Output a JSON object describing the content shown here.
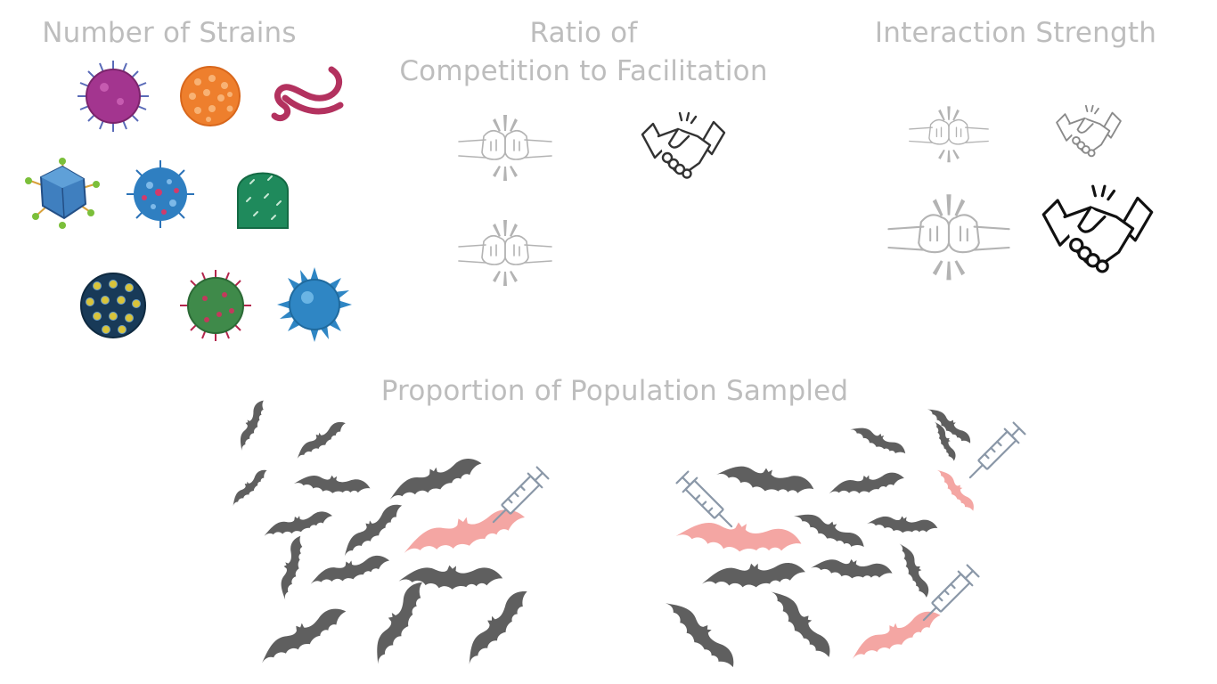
{
  "titles": {
    "strains": "Number of Strains",
    "ratio_line1": "Ratio of",
    "ratio_line2": "Competition to Facilitation",
    "interaction": "Interaction Strength",
    "population": "Proportion of Population Sampled"
  },
  "icons": {
    "viruses": [
      "magenta-spiky-virus",
      "orange-dotted-virus",
      "pink-filament-virus",
      "blue-polyhedral-virus",
      "blue-pink-spiked-virus",
      "green-bullet-virus",
      "dark-honeycomb-virus",
      "green-red-spiked-virus",
      "blue-spiky-virus"
    ],
    "competition": "fist-bump-icon",
    "facilitation": "handshake-icon",
    "bats": "bat-silhouette-icon",
    "sampling": "syringe-icon"
  },
  "colors": {
    "title_text": "#bdbdbd",
    "bat": "#5f5f5f",
    "sampled_bat": "#f4a6a3",
    "fist_line": "#b3b3b3",
    "handshake_line": "#444444",
    "syringe": "#8b98a8"
  }
}
